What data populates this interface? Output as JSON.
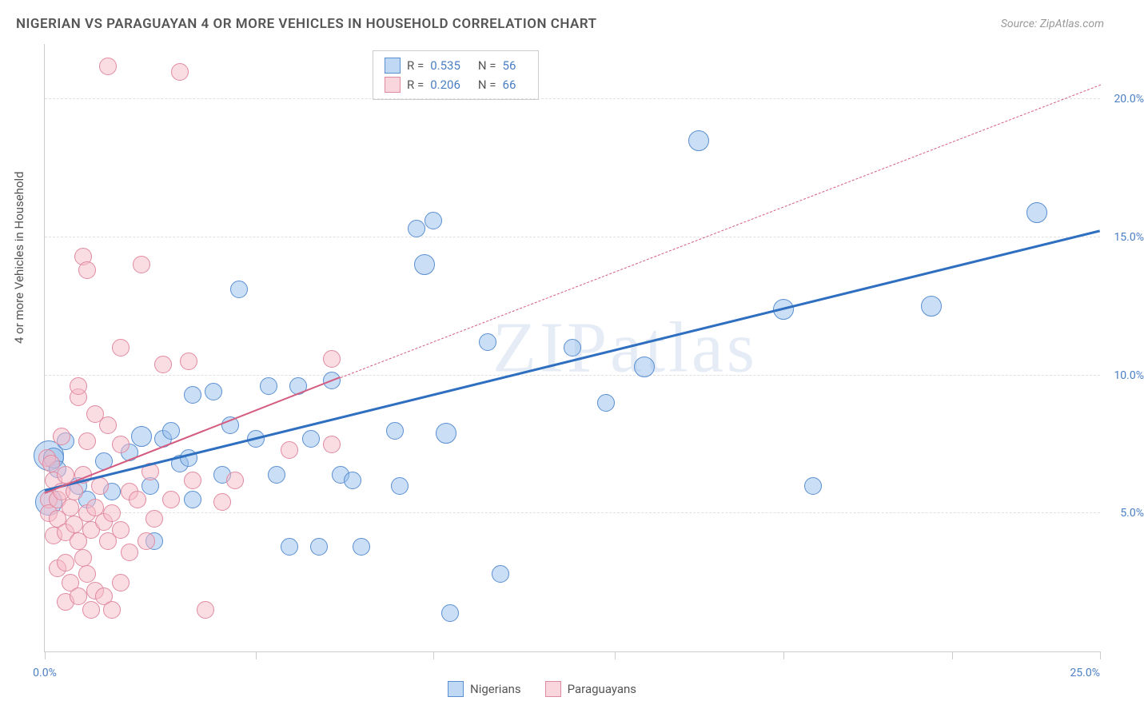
{
  "title": "NIGERIAN VS PARAGUAYAN 4 OR MORE VEHICLES IN HOUSEHOLD CORRELATION CHART",
  "source": "Source: ZipAtlas.com",
  "ylabel": "4 or more Vehicles in Household",
  "watermark": "ZIPatlas",
  "chart": {
    "type": "scatter",
    "xlim": [
      0,
      25
    ],
    "ylim": [
      0,
      22
    ],
    "x_ticks": [
      0,
      5,
      9.2,
      13.5,
      17.5,
      21.5,
      25
    ],
    "x_tick_labels": {
      "0": "0.0%",
      "25": "25.0%"
    },
    "y_gridlines": [
      5,
      10,
      15,
      20
    ],
    "y_tick_labels": {
      "5": "5.0%",
      "10": "10.0%",
      "15": "15.0%",
      "20": "20.0%"
    },
    "background_color": "#ffffff",
    "grid_color": "#e0e0e0",
    "axis_color": "#cccccc",
    "tick_label_color": "#4a7fc4",
    "tick_label_fontsize": 14,
    "title_fontsize": 17,
    "title_color": "#555555",
    "point_radius": 9,
    "point_radius_large": 14
  },
  "series": [
    {
      "name": "Nigerians",
      "color_fill": "rgba(150,190,235,0.5)",
      "color_stroke": "#5a8fd0",
      "r_value": "0.535",
      "n_value": "56",
      "trend": {
        "x0": 0,
        "y0": 5.8,
        "x1": 25,
        "y1": 15.2,
        "color": "#2f6fc0",
        "width": 3,
        "dashed": false,
        "extend_dashed": false
      },
      "points": [
        [
          0.1,
          7.1,
          18
        ],
        [
          0.1,
          5.4,
          16
        ],
        [
          0.2,
          7.0,
          12
        ],
        [
          0.3,
          6.6,
          10
        ],
        [
          0.5,
          7.6,
          10
        ],
        [
          0.8,
          6.0,
          10
        ],
        [
          1.0,
          5.5,
          10
        ],
        [
          1.4,
          6.9,
          10
        ],
        [
          1.6,
          5.8,
          10
        ],
        [
          2.0,
          7.2,
          10
        ],
        [
          2.3,
          7.8,
          12
        ],
        [
          2.5,
          6.0,
          10
        ],
        [
          2.6,
          4.0,
          10
        ],
        [
          2.8,
          7.7,
          10
        ],
        [
          3.0,
          8.0,
          10
        ],
        [
          3.2,
          6.8,
          10
        ],
        [
          3.4,
          7.0,
          10
        ],
        [
          3.5,
          9.3,
          10
        ],
        [
          3.5,
          5.5,
          10
        ],
        [
          4.0,
          9.4,
          10
        ],
        [
          4.2,
          6.4,
          10
        ],
        [
          4.4,
          8.2,
          10
        ],
        [
          4.6,
          13.1,
          10
        ],
        [
          5.0,
          7.7,
          10
        ],
        [
          5.3,
          9.6,
          10
        ],
        [
          5.5,
          6.4,
          10
        ],
        [
          5.8,
          3.8,
          10
        ],
        [
          6.0,
          9.6,
          10
        ],
        [
          6.3,
          7.7,
          10
        ],
        [
          6.5,
          3.8,
          10
        ],
        [
          6.8,
          9.8,
          10
        ],
        [
          7.0,
          6.4,
          10
        ],
        [
          7.3,
          6.2,
          10
        ],
        [
          7.5,
          3.8,
          10
        ],
        [
          8.3,
          8.0,
          10
        ],
        [
          8.4,
          6.0,
          10
        ],
        [
          8.8,
          15.3,
          10
        ],
        [
          9.0,
          14.0,
          12
        ],
        [
          9.2,
          15.6,
          10
        ],
        [
          9.5,
          7.9,
          12
        ],
        [
          9.6,
          1.4,
          10
        ],
        [
          10.5,
          11.2,
          10
        ],
        [
          10.8,
          2.8,
          10
        ],
        [
          12.5,
          11.0,
          10
        ],
        [
          13.3,
          9.0,
          10
        ],
        [
          14.2,
          10.3,
          12
        ],
        [
          15.5,
          18.5,
          12
        ],
        [
          17.5,
          12.4,
          12
        ],
        [
          18.2,
          6.0,
          10
        ],
        [
          21.0,
          12.5,
          12
        ],
        [
          23.5,
          15.9,
          12
        ]
      ]
    },
    {
      "name": "Paraguayans",
      "color_fill": "rgba(245,185,200,0.5)",
      "color_stroke": "#e08aa0",
      "r_value": "0.206",
      "n_value": "66",
      "trend": {
        "x0": 0,
        "y0": 5.7,
        "x1": 7.0,
        "y1": 9.9,
        "color": "#d45c80",
        "width": 2.5,
        "dashed": false,
        "extend_dashed": true,
        "x2": 25,
        "y2": 20.5
      },
      "points": [
        [
          0.05,
          7.0,
          10
        ],
        [
          0.1,
          5.5,
          10
        ],
        [
          0.1,
          5.0,
          10
        ],
        [
          0.15,
          6.8,
          10
        ],
        [
          0.2,
          6.2,
          10
        ],
        [
          0.2,
          4.2,
          10
        ],
        [
          0.3,
          5.5,
          10
        ],
        [
          0.3,
          4.8,
          10
        ],
        [
          0.3,
          3.0,
          10
        ],
        [
          0.4,
          5.8,
          10
        ],
        [
          0.4,
          7.8,
          10
        ],
        [
          0.5,
          6.4,
          10
        ],
        [
          0.5,
          4.3,
          10
        ],
        [
          0.5,
          3.2,
          10
        ],
        [
          0.5,
          1.8,
          10
        ],
        [
          0.6,
          5.2,
          10
        ],
        [
          0.6,
          2.5,
          10
        ],
        [
          0.7,
          5.8,
          10
        ],
        [
          0.7,
          4.6,
          10
        ],
        [
          0.8,
          9.2,
          10
        ],
        [
          0.8,
          9.6,
          10
        ],
        [
          0.8,
          4.0,
          10
        ],
        [
          0.8,
          2.0,
          10
        ],
        [
          0.9,
          14.3,
          10
        ],
        [
          0.9,
          6.4,
          10
        ],
        [
          0.9,
          3.4,
          10
        ],
        [
          1.0,
          13.8,
          10
        ],
        [
          1.0,
          7.6,
          10
        ],
        [
          1.0,
          5.0,
          10
        ],
        [
          1.0,
          2.8,
          10
        ],
        [
          1.1,
          4.4,
          10
        ],
        [
          1.1,
          1.5,
          10
        ],
        [
          1.2,
          8.6,
          10
        ],
        [
          1.2,
          5.2,
          10
        ],
        [
          1.2,
          2.2,
          10
        ],
        [
          1.3,
          6.0,
          10
        ],
        [
          1.4,
          4.7,
          10
        ],
        [
          1.4,
          2.0,
          10
        ],
        [
          1.5,
          21.2,
          10
        ],
        [
          1.5,
          8.2,
          10
        ],
        [
          1.5,
          4.0,
          10
        ],
        [
          1.6,
          5.0,
          10
        ],
        [
          1.6,
          1.5,
          10
        ],
        [
          1.8,
          11.0,
          10
        ],
        [
          1.8,
          7.5,
          10
        ],
        [
          1.8,
          4.4,
          10
        ],
        [
          1.8,
          2.5,
          10
        ],
        [
          2.0,
          5.8,
          10
        ],
        [
          2.0,
          3.6,
          10
        ],
        [
          2.2,
          5.5,
          10
        ],
        [
          2.3,
          14.0,
          10
        ],
        [
          2.4,
          4.0,
          10
        ],
        [
          2.5,
          6.5,
          10
        ],
        [
          2.6,
          4.8,
          10
        ],
        [
          2.8,
          10.4,
          10
        ],
        [
          3.0,
          5.5,
          10
        ],
        [
          3.2,
          21.0,
          10
        ],
        [
          3.4,
          10.5,
          10
        ],
        [
          3.5,
          6.2,
          10
        ],
        [
          3.8,
          1.5,
          10
        ],
        [
          4.2,
          5.4,
          10
        ],
        [
          4.5,
          6.2,
          10
        ],
        [
          5.8,
          7.3,
          10
        ],
        [
          6.8,
          10.6,
          10
        ],
        [
          6.8,
          7.5,
          10
        ]
      ]
    }
  ],
  "r_legend": {
    "R_label": "R =",
    "N_label": "N ="
  },
  "bottom_legend": {
    "label1": "Nigerians",
    "label2": "Paraguayans"
  }
}
